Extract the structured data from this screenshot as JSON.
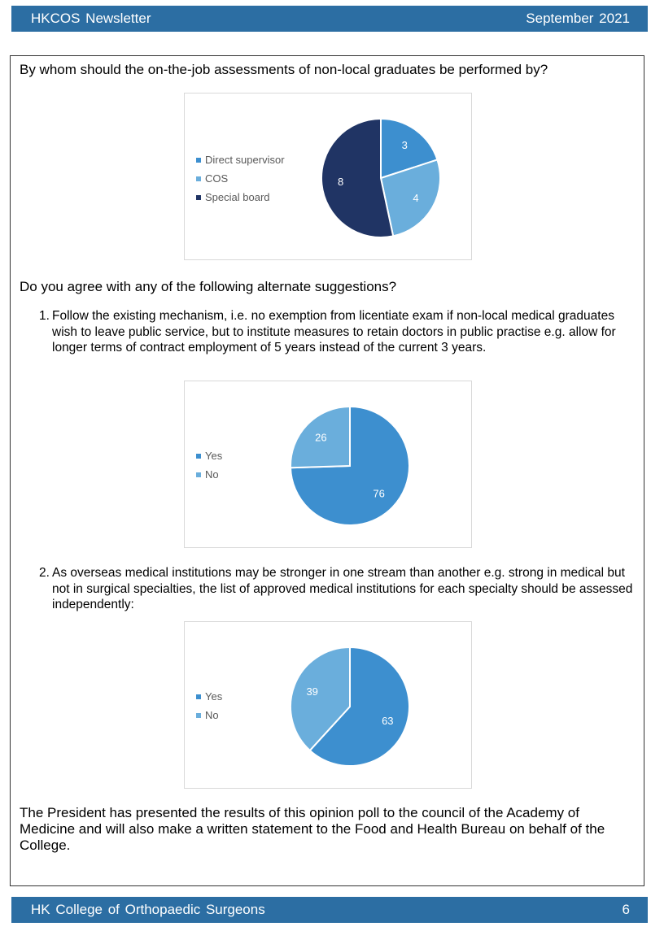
{
  "header": {
    "left": "HKCOS  Newsletter",
    "right": "September  2021"
  },
  "footer": {
    "left": "HK  College  of  Orthopaedic  Surgeons",
    "right": "6"
  },
  "question1": "By whom should the on-the-job assessments of non-local graduates be performed by?",
  "question2": "Do you agree with any of the following alternate suggestions?",
  "items": [
    {
      "num": "1.",
      "text": "Follow the existing mechanism, i.e. no exemption from licentiate exam if non-local medical graduates wish to leave public service, but to institute measures to retain doctors in public practise e.g. allow for longer terms of contract employment of 5 years instead of the current 3 years."
    },
    {
      "num": "2.",
      "text": "As overseas medical institutions may be stronger in one stream than another e.g. strong in medical but not in surgical specialties, the list of approved medical institutions for each specialty should be assessed independently:"
    }
  ],
  "closing": "The President has presented the results of this opinion poll to the council of the Academy of Medicine and will also make a written statement to the Food and Health Bureau on behalf of the College.",
  "chart_data": [
    {
      "type": "pie",
      "categories": [
        "Direct supervisor",
        "COS",
        "Special board"
      ],
      "values": [
        3,
        4,
        8
      ],
      "colors": [
        "#3d8fcf",
        "#6aaedc",
        "#203464"
      ],
      "legend": "left"
    },
    {
      "type": "pie",
      "categories": [
        "Yes",
        "No"
      ],
      "values": [
        76,
        26
      ],
      "colors": [
        "#3d8fcf",
        "#6aaedc"
      ],
      "legend": "left"
    },
    {
      "type": "pie",
      "categories": [
        "Yes",
        "No"
      ],
      "values": [
        63,
        39
      ],
      "colors": [
        "#3d8fcf",
        "#6aaedc"
      ],
      "legend": "left"
    }
  ]
}
